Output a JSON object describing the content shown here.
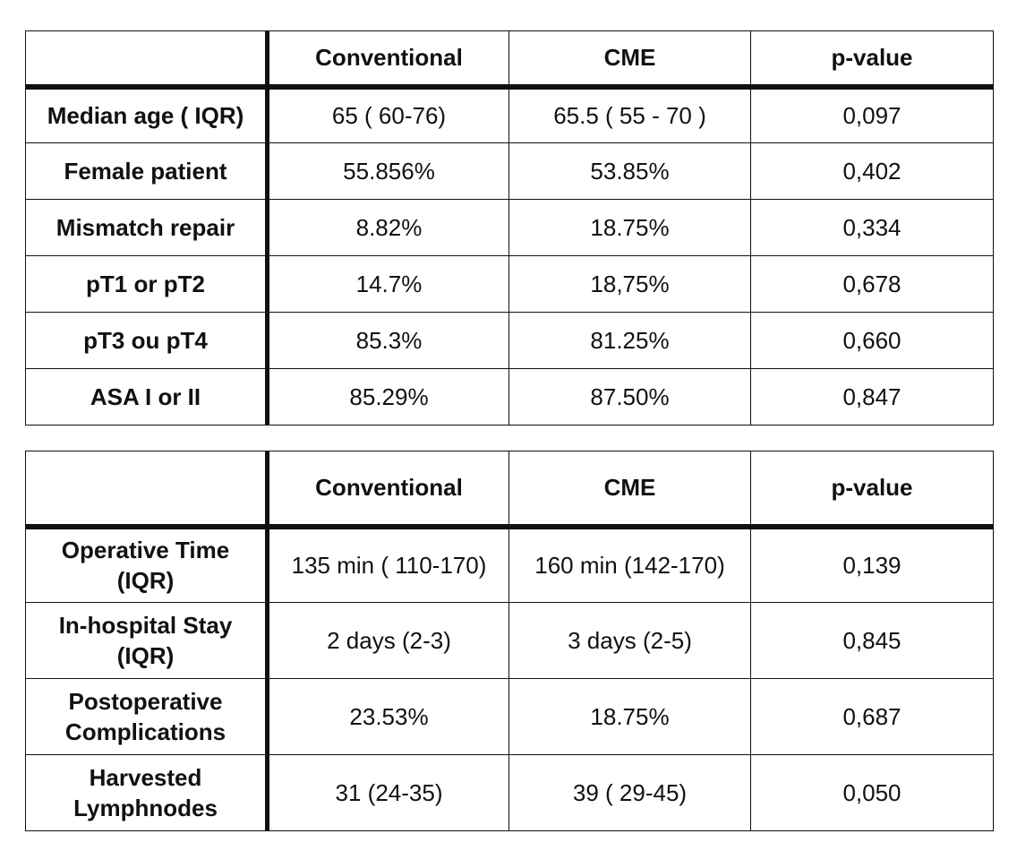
{
  "table1": {
    "headers": [
      "",
      "Conventional",
      "CME",
      "p-value"
    ],
    "rows": [
      [
        "Median age ( IQR)",
        "65 ( 60-76)",
        "65.5 ( 55 - 70 )",
        "0,097"
      ],
      [
        "Female patient",
        "55.856%",
        "53.85%",
        "0,402"
      ],
      [
        "Mismatch repair",
        "8.82%",
        "18.75%",
        "0,334"
      ],
      [
        "pT1 or pT2",
        "14.7%",
        "18,75%",
        "0,678"
      ],
      [
        "pT3 ou pT4",
        "85.3%",
        "81.25%",
        "0,660"
      ],
      [
        "ASA I or II",
        "85.29%",
        "87.50%",
        "0,847"
      ]
    ]
  },
  "table2": {
    "headers": [
      "",
      "Conventional",
      "CME",
      "p-value"
    ],
    "rows": [
      [
        "Operative Time (IQR)",
        "135 min ( 110-170)",
        "160 min (142-170)",
        "0,139"
      ],
      [
        "In-hospital Stay (IQR)",
        "2 days (2-3)",
        "3 days (2-5)",
        "0,845"
      ],
      [
        "Postoperative Complications",
        "23.53%",
        "18.75%",
        "0,687"
      ],
      [
        "Harvested Lymphnodes",
        "31 (24-35)",
        "39 ( 29-45)",
        "0,050"
      ]
    ]
  }
}
